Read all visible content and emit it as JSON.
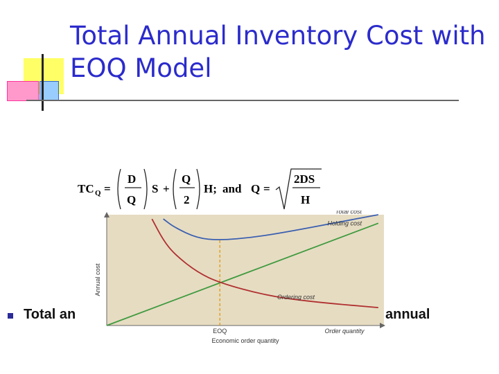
{
  "slide": {
    "title": "Total Annual Inventory Cost with EOQ Model",
    "bullet_text": "Total an",
    "bullet_tail": "annual"
  },
  "formula": {
    "lhs": "TC",
    "lhs_sub": "Q",
    "eq": "=",
    "f1_num": "D",
    "f1_den": "Q",
    "s": "S",
    "plus": "+",
    "f2_num": "Q",
    "f2_den": "2",
    "h": "H;",
    "and": "and",
    "q": "Q",
    "eq2": "=",
    "f3_num": "2DS",
    "f3_den": "H"
  },
  "chart_data": {
    "type": "line",
    "ylabel": "Annual cost",
    "xlabel": "Order quantity",
    "subtitle": "Economic order quantity",
    "eoq_label": "EOQ",
    "series": [
      {
        "name": "Total cost",
        "color": "#3a5fb0",
        "x": [
          0.5,
          0.6,
          0.8,
          1.0,
          1.3,
          1.6,
          2.0,
          2.4
        ],
        "y": [
          2.5,
          2.3,
          2.05,
          2.0,
          2.07,
          2.2,
          2.4,
          2.6
        ]
      },
      {
        "name": "Holding cost",
        "color": "#3f9a3f",
        "x": [
          0.0,
          2.4
        ],
        "y": [
          0.0,
          2.4
        ]
      },
      {
        "name": "Ordering cost",
        "color": "#b03030",
        "x": [
          0.4,
          0.5,
          0.6,
          0.8,
          1.0,
          1.4,
          1.8,
          2.4
        ],
        "y": [
          2.5,
          2.0,
          1.67,
          1.25,
          1.0,
          0.71,
          0.56,
          0.42
        ]
      }
    ],
    "eoq_x": 1.0,
    "background": "#e6dcc2",
    "eoq_line_color": "#e0a020"
  }
}
